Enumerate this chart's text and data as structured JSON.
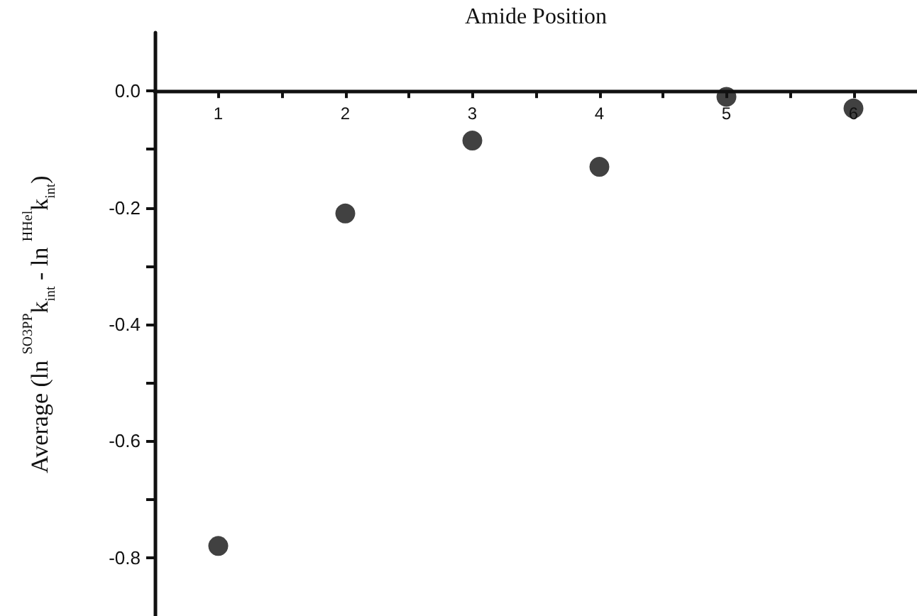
{
  "chart_data": {
    "type": "scatter",
    "xlabel": "Amide Position",
    "ylabel": "Average (ln $^{SO3PP}$k$_{int}$ - ln $^{HHel}$k$_{int}$)",
    "x": [
      1,
      2,
      3,
      4,
      5,
      6
    ],
    "series": [
      {
        "color": "#111111",
        "values": [
          -0.78,
          -0.21,
          -0.085,
          -0.13,
          -0.01,
          -0.03
        ]
      }
    ],
    "xlim": [
      0.5,
      6.5
    ],
    "xticks": [
      1,
      {
        "value": 1.5,
        "label": null
      },
      2,
      {
        "value": 2.5,
        "label": null
      },
      3,
      {
        "value": 3.5,
        "label": null
      },
      4,
      {
        "value": 4.5,
        "label": null
      },
      5,
      {
        "value": 5.5,
        "label": null
      },
      6
    ],
    "ylim": [
      -0.9,
      0.1
    ],
    "yticks": [
      {
        "value": 0,
        "label": "0.0"
      },
      {
        "value": -0.1,
        "label": null
      },
      -0.2,
      {
        "value": -0.3,
        "label": null
      },
      -0.4,
      {
        "value": -0.5,
        "label": null
      },
      -0.6,
      {
        "value": -0.7,
        "label": null
      },
      -0.8
    ],
    "marker": "circle",
    "grid": false
  }
}
